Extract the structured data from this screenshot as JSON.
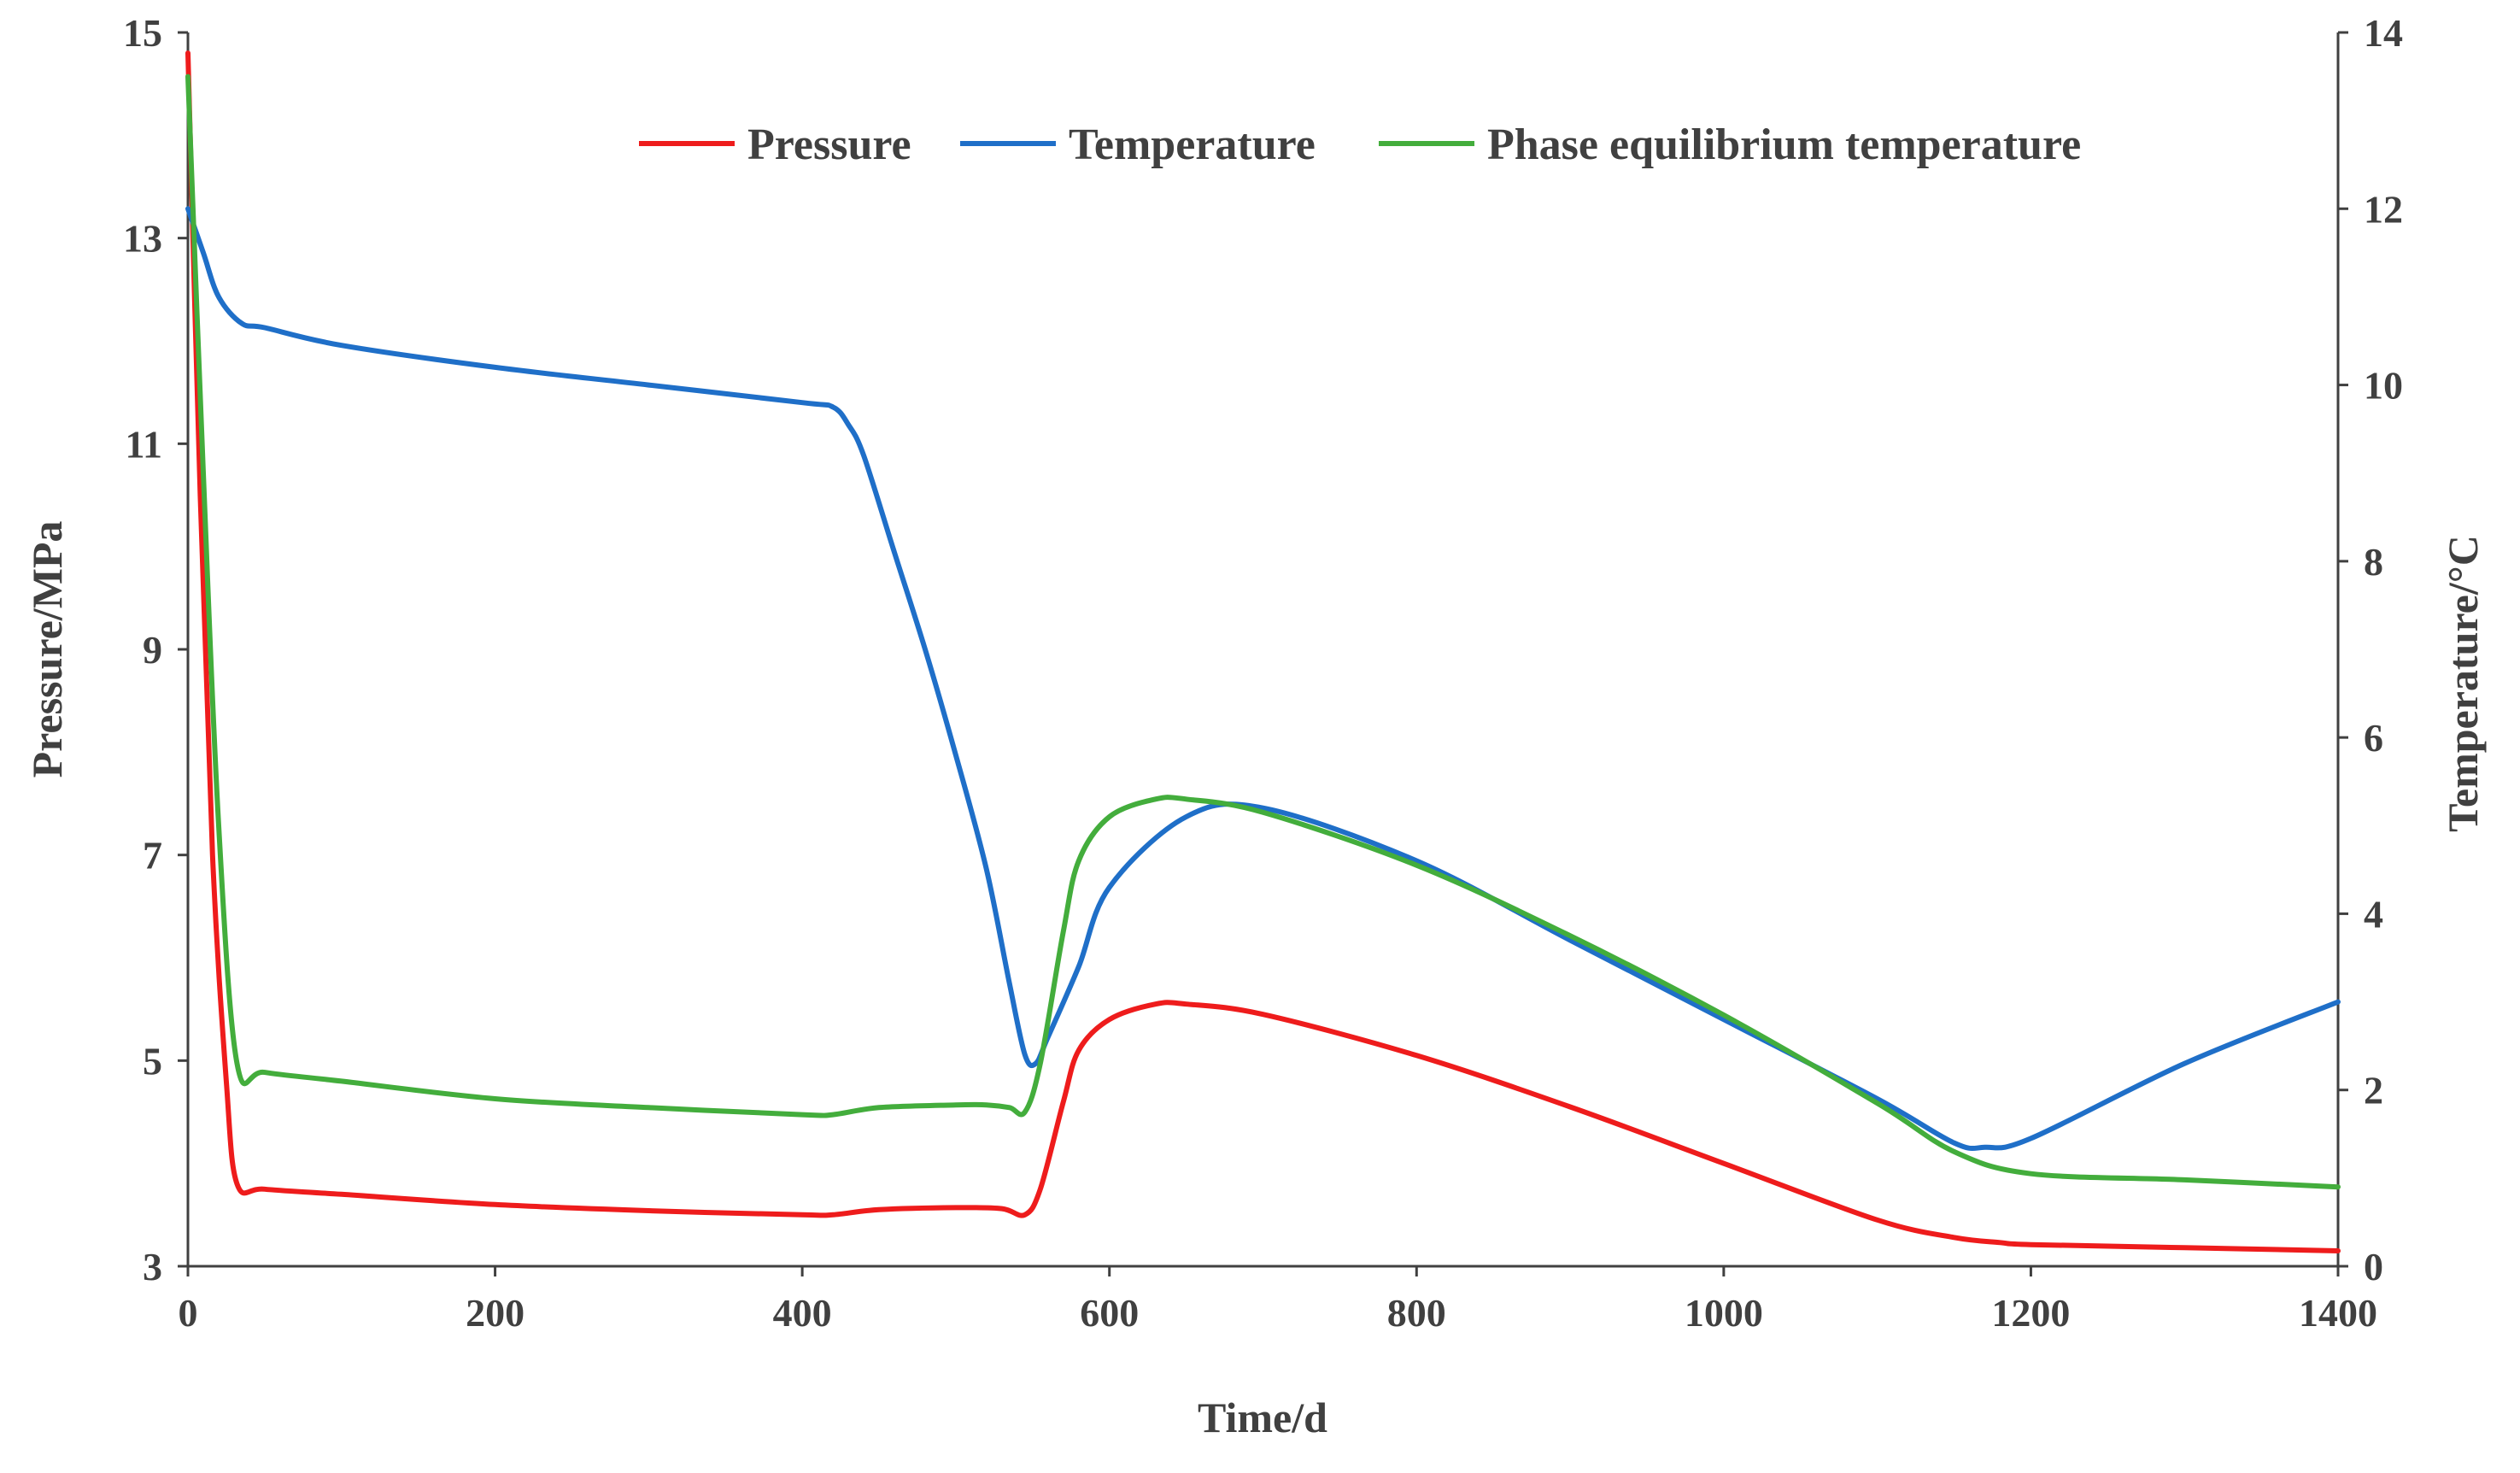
{
  "chart_data": {
    "type": "line",
    "title": "",
    "xlabel": "Time/d",
    "ylabel": "Pressure/MPa",
    "y2label": "Temperature/°C",
    "xlim": [
      0,
      1400
    ],
    "ylim": [
      3,
      15
    ],
    "y2lim": [
      0,
      14
    ],
    "xticks": [
      0,
      200,
      400,
      600,
      800,
      1000,
      1200,
      1400
    ],
    "yticks": [
      3,
      5,
      7,
      9,
      11,
      13,
      15
    ],
    "y2ticks": [
      0,
      2,
      4,
      6,
      8,
      10,
      12,
      14
    ],
    "grid": false,
    "legend": "top-right",
    "series": [
      {
        "name": "Pressure",
        "axis": "left",
        "color": "#ee1c1c",
        "x": [
          0,
          8,
          16,
          25,
          32,
          50,
          100,
          200,
          300,
          400,
          420,
          450,
          500,
          530,
          545,
          555,
          570,
          580,
          600,
          630,
          650,
          700,
          800,
          900,
          1000,
          1100,
          1150,
          1180,
          1200,
          1300,
          1400
        ],
        "y": [
          14.8,
          10.5,
          7.0,
          4.8,
          3.8,
          3.75,
          3.7,
          3.6,
          3.54,
          3.5,
          3.5,
          3.55,
          3.57,
          3.56,
          3.5,
          3.75,
          4.6,
          5.1,
          5.4,
          5.55,
          5.55,
          5.45,
          5.05,
          4.55,
          4.0,
          3.45,
          3.28,
          3.23,
          3.21,
          3.18,
          3.15
        ]
      },
      {
        "name": "Temperature",
        "axis": "right",
        "color": "#1f6fc8",
        "x": [
          0,
          10,
          20,
          35,
          50,
          100,
          200,
          300,
          400,
          420,
          430,
          440,
          460,
          480,
          500,
          520,
          535,
          545,
          552,
          560,
          580,
          600,
          650,
          700,
          800,
          900,
          1000,
          1100,
          1150,
          1170,
          1200,
          1300,
          1400
        ],
        "y": [
          12.0,
          11.5,
          11.0,
          10.7,
          10.65,
          10.45,
          10.2,
          10.0,
          9.8,
          9.75,
          9.55,
          9.2,
          8.1,
          7.0,
          5.8,
          4.5,
          3.2,
          2.4,
          2.3,
          2.6,
          3.4,
          4.3,
          5.1,
          5.2,
          4.6,
          3.7,
          2.8,
          1.9,
          1.4,
          1.35,
          1.45,
          2.3,
          3.0
        ]
      },
      {
        "name": "Phase equilibrium temperature",
        "axis": "right",
        "color": "#43ad3c",
        "x": [
          0,
          10,
          20,
          32,
          50,
          100,
          200,
          300,
          400,
          420,
          450,
          500,
          520,
          535,
          545,
          555,
          570,
          580,
          600,
          630,
          650,
          700,
          800,
          900,
          1000,
          1100,
          1150,
          1200,
          1300,
          1400
        ],
        "y": [
          13.5,
          9.0,
          5.0,
          2.3,
          2.2,
          2.1,
          1.9,
          1.8,
          1.72,
          1.72,
          1.8,
          1.83,
          1.83,
          1.8,
          1.75,
          2.3,
          3.8,
          4.6,
          5.1,
          5.3,
          5.3,
          5.15,
          4.55,
          3.75,
          2.85,
          1.85,
          1.3,
          1.05,
          0.98,
          0.9
        ]
      }
    ]
  }
}
